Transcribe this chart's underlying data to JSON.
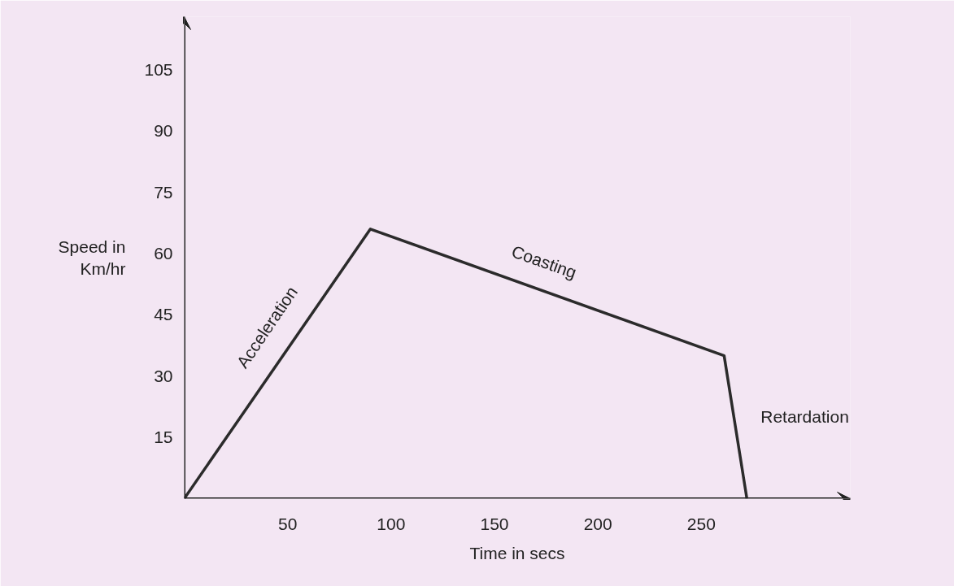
{
  "chart_data": {
    "type": "line",
    "xlabel": "Time in secs",
    "ylabel": "Speed in Km/hr",
    "x": [
      0,
      90,
      261,
      272
    ],
    "values": [
      0,
      66,
      35,
      0
    ],
    "color": "#2b2b2b",
    "xlim": [
      0,
      322
    ],
    "ylim": [
      0,
      118
    ],
    "xticks": [
      50,
      100,
      150,
      200,
      250
    ],
    "yticks": [
      15,
      30,
      45,
      60,
      75,
      90,
      105
    ],
    "grid": false,
    "marker": "none",
    "line_style": "solid",
    "annotations": [
      "Acceleration",
      "Coasting",
      "Retardation"
    ]
  }
}
